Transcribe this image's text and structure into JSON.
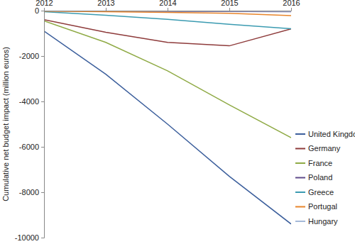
{
  "chart_data": {
    "type": "line",
    "y_label": "Cumulative net budget impact (million euros)",
    "x": [
      2012,
      2013,
      2014,
      2015,
      2016
    ],
    "xlim": [
      2012,
      2016
    ],
    "xticks": [
      2012,
      2013,
      2014,
      2015,
      2016
    ],
    "ylim": [
      -10000,
      0
    ],
    "yticks": [
      0,
      -2000,
      -4000,
      -6000,
      -8000,
      -10000
    ],
    "grid": false,
    "legend": "lower right",
    "series": [
      {
        "name": "United Kingdom",
        "color": "#3c5f9c",
        "values": [
          -900,
          -2800,
          -5000,
          -7300,
          -9400
        ]
      },
      {
        "name": "Germany",
        "color": "#8e3b3b",
        "values": [
          -400,
          -950,
          -1400,
          -1550,
          -800
        ]
      },
      {
        "name": "France",
        "color": "#8faa45",
        "values": [
          -450,
          -1400,
          -2650,
          -4150,
          -5600
        ]
      },
      {
        "name": "Poland",
        "color": "#5f4b8b",
        "values": [
          -10,
          -20,
          -30,
          -40,
          -50
        ]
      },
      {
        "name": "Greece",
        "color": "#3b9bb1",
        "values": [
          -50,
          -200,
          -380,
          -600,
          -800
        ]
      },
      {
        "name": "Portugal",
        "color": "#e8852b",
        "values": [
          -20,
          -50,
          -80,
          -120,
          -220
        ]
      },
      {
        "name": "Hungary",
        "color": "#a5b9d9",
        "values": [
          -5,
          -10,
          -15,
          -20,
          -30
        ]
      }
    ]
  }
}
